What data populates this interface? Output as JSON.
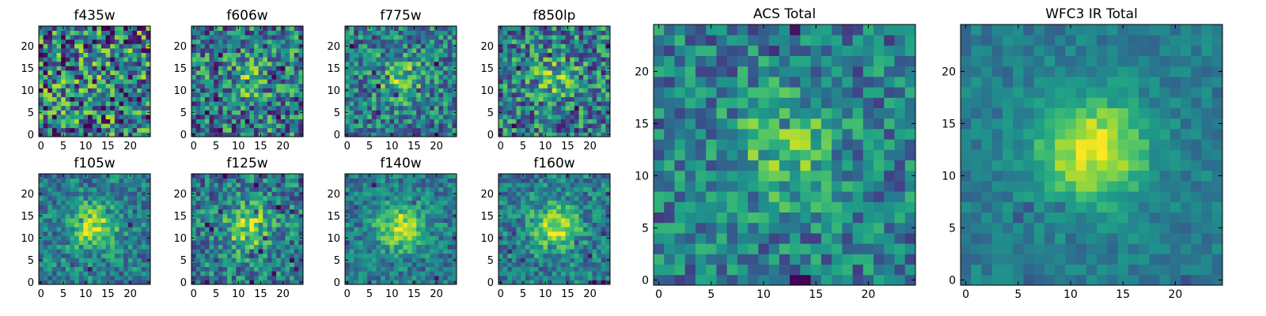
{
  "chart_data": [
    {
      "type": "heatmap",
      "title": "f435w",
      "xticks": [
        "0",
        "5",
        "10",
        "15",
        "20"
      ],
      "yticks": [
        "0",
        "5",
        "10",
        "15",
        "20"
      ],
      "xlim": [
        -0.5,
        24.5
      ],
      "ylim": [
        -0.5,
        24.5
      ],
      "grid_size": 25,
      "source_peak": 0.08,
      "noise": 0.95,
      "seed": 11,
      "colormap": "viridis"
    },
    {
      "type": "heatmap",
      "title": "f606w",
      "xticks": [
        "0",
        "5",
        "10",
        "15",
        "20"
      ],
      "yticks": [
        "0",
        "5",
        "10",
        "15",
        "20"
      ],
      "xlim": [
        -0.5,
        24.5
      ],
      "ylim": [
        -0.5,
        24.5
      ],
      "grid_size": 25,
      "source_peak": 0.35,
      "noise": 0.75,
      "seed": 23,
      "colormap": "viridis"
    },
    {
      "type": "heatmap",
      "title": "f775w",
      "xticks": [
        "0",
        "5",
        "10",
        "15",
        "20"
      ],
      "yticks": [
        "0",
        "5",
        "10",
        "15",
        "20"
      ],
      "xlim": [
        -0.5,
        24.5
      ],
      "ylim": [
        -0.5,
        24.5
      ],
      "grid_size": 25,
      "source_peak": 0.55,
      "noise": 0.6,
      "seed": 37,
      "colormap": "viridis"
    },
    {
      "type": "heatmap",
      "title": "f850lp",
      "xticks": [
        "0",
        "5",
        "10",
        "15",
        "20"
      ],
      "yticks": [
        "0",
        "5",
        "10",
        "15",
        "20"
      ],
      "xlim": [
        -0.5,
        24.5
      ],
      "ylim": [
        -0.5,
        24.5
      ],
      "grid_size": 25,
      "source_peak": 0.45,
      "noise": 0.7,
      "seed": 41,
      "colormap": "viridis"
    },
    {
      "type": "heatmap",
      "title": "f105w",
      "xticks": [
        "0",
        "5",
        "10",
        "15",
        "20"
      ],
      "yticks": [
        "0",
        "5",
        "10",
        "15",
        "20"
      ],
      "xlim": [
        -0.5,
        24.5
      ],
      "ylim": [
        -0.5,
        24.5
      ],
      "grid_size": 25,
      "source_peak": 0.85,
      "noise": 0.45,
      "seed": 53,
      "colormap": "viridis"
    },
    {
      "type": "heatmap",
      "title": "f125w",
      "xticks": [
        "0",
        "5",
        "10",
        "15",
        "20"
      ],
      "yticks": [
        "0",
        "5",
        "10",
        "15",
        "20"
      ],
      "xlim": [
        -0.5,
        24.5
      ],
      "ylim": [
        -0.5,
        24.5
      ],
      "grid_size": 25,
      "source_peak": 0.75,
      "noise": 0.55,
      "seed": 67,
      "colormap": "viridis"
    },
    {
      "type": "heatmap",
      "title": "f140w",
      "xticks": [
        "0",
        "5",
        "10",
        "15",
        "20"
      ],
      "yticks": [
        "0",
        "5",
        "10",
        "15",
        "20"
      ],
      "xlim": [
        -0.5,
        24.5
      ],
      "ylim": [
        -0.5,
        24.5
      ],
      "grid_size": 25,
      "source_peak": 0.85,
      "noise": 0.4,
      "seed": 71,
      "colormap": "viridis"
    },
    {
      "type": "heatmap",
      "title": "f160w",
      "xticks": [
        "0",
        "5",
        "10",
        "15",
        "20"
      ],
      "yticks": [
        "0",
        "5",
        "10",
        "15",
        "20"
      ],
      "xlim": [
        -0.5,
        24.5
      ],
      "ylim": [
        -0.5,
        24.5
      ],
      "grid_size": 25,
      "source_peak": 0.85,
      "noise": 0.45,
      "seed": 83,
      "colormap": "viridis"
    },
    {
      "type": "heatmap",
      "title": "ACS Total",
      "xticks": [
        "0",
        "5",
        "10",
        "15",
        "20"
      ],
      "yticks": [
        "0",
        "5",
        "10",
        "15",
        "20"
      ],
      "xlim": [
        -0.5,
        24.5
      ],
      "ylim": [
        -0.5,
        24.5
      ],
      "grid_size": 25,
      "source_peak": 0.55,
      "noise": 0.5,
      "seed": 97,
      "colormap": "viridis"
    },
    {
      "type": "heatmap",
      "title": "WFC3 IR Total",
      "xticks": [
        "0",
        "5",
        "10",
        "15",
        "20"
      ],
      "yticks": [
        "0",
        "5",
        "10",
        "15",
        "20"
      ],
      "xlim": [
        -0.5,
        24.5
      ],
      "ylim": [
        -0.5,
        24.5
      ],
      "grid_size": 25,
      "source_peak": 1.0,
      "noise": 0.22,
      "seed": 101,
      "colormap": "viridis"
    }
  ]
}
